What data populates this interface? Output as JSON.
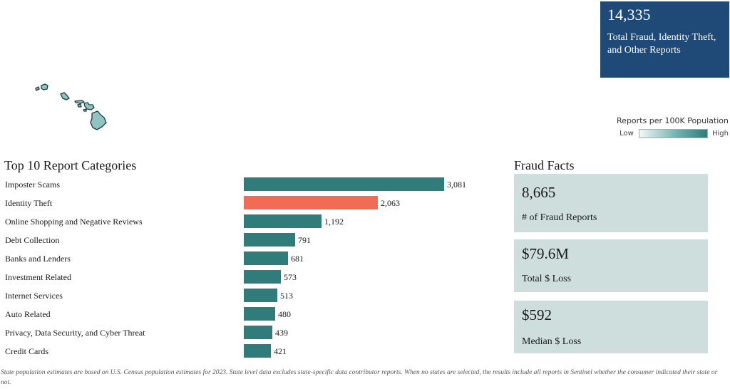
{
  "summary": {
    "total_reports": "14,335",
    "total_label": "Total Fraud, Identity Theft, and Other Reports"
  },
  "map": {
    "region": "Hawaii",
    "fill_color": "#8fc4c3",
    "outline_color": "#1d3b3a"
  },
  "legend": {
    "title": "Reports per 100K Population",
    "low_label": "Low",
    "high_label": "High",
    "colors": [
      "#f2f7f7",
      "#2f7c7a"
    ]
  },
  "facts": {
    "title": "Fraud Facts",
    "items": [
      {
        "value": "8,665",
        "label": "# of Fraud Reports"
      },
      {
        "value": "$79.6M",
        "label": "Total $ Loss"
      },
      {
        "value": "$592",
        "label": "Median $ Loss"
      }
    ]
  },
  "chart_data": {
    "type": "bar",
    "orientation": "horizontal",
    "title": "Top 10 Report Categories",
    "xlabel": "",
    "ylabel": "",
    "categories": [
      "Imposter Scams",
      "Identity Theft",
      "Online Shopping and Negative Reviews",
      "Debt Collection",
      "Banks and Lenders",
      "Investment Related",
      "Internet Services",
      "Auto Related",
      "Privacy, Data Security, and Cyber Threat",
      "Credit Cards"
    ],
    "values": [
      3081,
      2063,
      1192,
      791,
      681,
      573,
      513,
      480,
      439,
      421
    ],
    "value_labels": [
      "3,081",
      "2,063",
      "1,192",
      "791",
      "681",
      "573",
      "513",
      "480",
      "439",
      "421"
    ],
    "colors": [
      "#2f7c7a",
      "#f26b55",
      "#2f7c7a",
      "#2f7c7a",
      "#2f7c7a",
      "#2f7c7a",
      "#2f7c7a",
      "#2f7c7a",
      "#2f7c7a",
      "#2f7c7a"
    ],
    "xlim": [
      0,
      3081
    ],
    "grid": false,
    "legend": "none"
  },
  "footnote": "State population estimates are based on U.S. Census population estimates for 2023. State level data excludes state-specific data contributor reports. When no states are selected, the results include all reports in Sentinel whether the consumer indicated their state or not."
}
